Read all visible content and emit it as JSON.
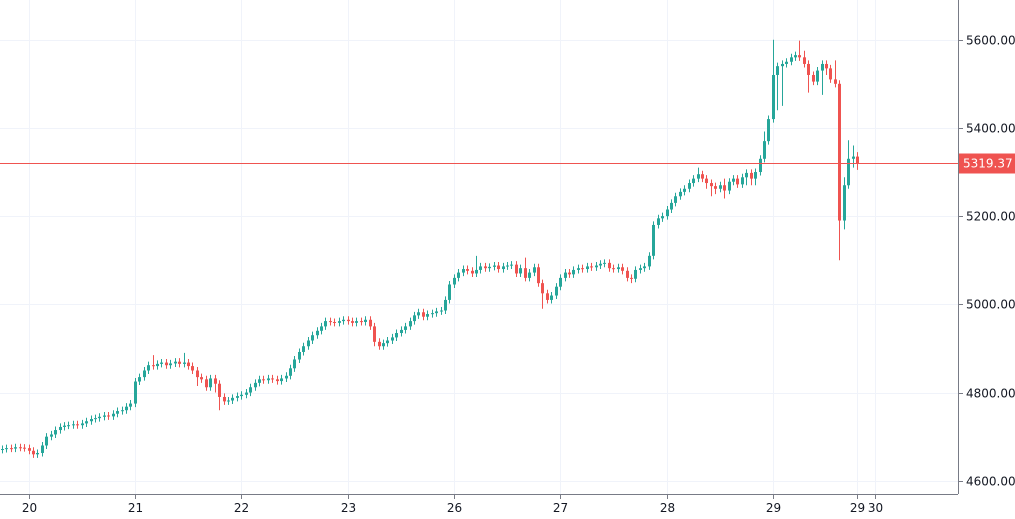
{
  "chart_data": {
    "type": "candlestick",
    "title": "",
    "interval": "1 hour",
    "x_tick_labels": [
      {
        "label": "20",
        "index": 6
      },
      {
        "label": "21",
        "index": 30
      },
      {
        "label": "22",
        "index": 54
      },
      {
        "label": "23",
        "index": 78
      },
      {
        "label": "26",
        "index": 102
      },
      {
        "label": "27",
        "index": 126
      },
      {
        "label": "28",
        "index": 150
      },
      {
        "label": "29",
        "index": 174
      },
      {
        "label": "29",
        "index": 193
      },
      {
        "label": "30",
        "index": 197
      }
    ],
    "y_tick_labels": [
      "4600.00",
      "4800.00",
      "5000.00",
      "5200.00",
      "5400.00",
      "5600.00"
    ],
    "y_ticks": [
      4600,
      4800,
      5000,
      5200,
      5400,
      5600
    ],
    "ylim": [
      4570,
      5690
    ],
    "x_count": 216,
    "grid": true,
    "last_price": 5319.37,
    "last_price_label": "5319.37",
    "colors": {
      "up": "#26a69a",
      "down": "#ef5350",
      "grid": "#f0f3fa",
      "axis": "#787b86",
      "price_line": "#ef5350"
    },
    "candles_format": [
      "open",
      "high",
      "low",
      "close"
    ],
    "candles": [
      [
        4670,
        4680,
        4662,
        4672
      ],
      [
        4672,
        4682,
        4664,
        4674
      ],
      [
        4674,
        4682,
        4665,
        4673
      ],
      [
        4673,
        4684,
        4665,
        4676
      ],
      [
        4676,
        4684,
        4667,
        4675
      ],
      [
        4675,
        4683,
        4666,
        4674
      ],
      [
        4674,
        4682,
        4660,
        4668
      ],
      [
        4668,
        4676,
        4652,
        4660
      ],
      [
        4660,
        4671,
        4652,
        4663
      ],
      [
        4663,
        4688,
        4655,
        4680
      ],
      [
        4680,
        4708,
        4672,
        4700
      ],
      [
        4700,
        4713,
        4692,
        4705
      ],
      [
        4705,
        4723,
        4697,
        4715
      ],
      [
        4715,
        4730,
        4707,
        4722
      ],
      [
        4722,
        4733,
        4714,
        4725
      ],
      [
        4725,
        4734,
        4717,
        4726
      ],
      [
        4726,
        4736,
        4718,
        4728
      ],
      [
        4728,
        4736,
        4718,
        4726
      ],
      [
        4726,
        4738,
        4718,
        4730
      ],
      [
        4730,
        4743,
        4722,
        4735
      ],
      [
        4735,
        4748,
        4727,
        4740
      ],
      [
        4740,
        4750,
        4732,
        4742
      ],
      [
        4742,
        4753,
        4734,
        4745
      ],
      [
        4745,
        4756,
        4737,
        4748
      ],
      [
        4748,
        4756,
        4738,
        4746
      ],
      [
        4746,
        4760,
        4738,
        4752
      ],
      [
        4752,
        4766,
        4744,
        4758
      ],
      [
        4758,
        4768,
        4750,
        4760
      ],
      [
        4760,
        4776,
        4752,
        4768
      ],
      [
        4768,
        4783,
        4760,
        4775
      ],
      [
        4775,
        4833,
        4767,
        4825
      ],
      [
        4825,
        4843,
        4817,
        4835
      ],
      [
        4835,
        4858,
        4827,
        4850
      ],
      [
        4850,
        4870,
        4842,
        4862
      ],
      [
        4862,
        4885,
        4852,
        4860
      ],
      [
        4860,
        4873,
        4852,
        4865
      ],
      [
        4865,
        4876,
        4857,
        4868
      ],
      [
        4868,
        4876,
        4854,
        4862
      ],
      [
        4862,
        4874,
        4854,
        4866
      ],
      [
        4866,
        4878,
        4858,
        4870
      ],
      [
        4870,
        4878,
        4857,
        4865
      ],
      [
        4865,
        4890,
        4857,
        4868
      ],
      [
        4868,
        4876,
        4852,
        4860
      ],
      [
        4860,
        4868,
        4842,
        4850
      ],
      [
        4850,
        4858,
        4815,
        4835
      ],
      [
        4835,
        4843,
        4822,
        4830
      ],
      [
        4830,
        4838,
        4804,
        4812
      ],
      [
        4812,
        4840,
        4804,
        4832
      ],
      [
        4832,
        4840,
        4800,
        4820
      ],
      [
        4820,
        4828,
        4760,
        4790
      ],
      [
        4790,
        4798,
        4772,
        4780
      ],
      [
        4780,
        4790,
        4772,
        4782
      ],
      [
        4782,
        4796,
        4774,
        4788
      ],
      [
        4788,
        4800,
        4780,
        4792
      ],
      [
        4792,
        4803,
        4784,
        4795
      ],
      [
        4795,
        4808,
        4787,
        4800
      ],
      [
        4800,
        4820,
        4792,
        4812
      ],
      [
        4812,
        4830,
        4804,
        4822
      ],
      [
        4822,
        4838,
        4814,
        4830
      ],
      [
        4830,
        4838,
        4820,
        4828
      ],
      [
        4828,
        4840,
        4820,
        4832
      ],
      [
        4832,
        4840,
        4822,
        4830
      ],
      [
        4830,
        4838,
        4818,
        4826
      ],
      [
        4826,
        4840,
        4818,
        4832
      ],
      [
        4832,
        4846,
        4824,
        4838
      ],
      [
        4838,
        4863,
        4830,
        4855
      ],
      [
        4855,
        4883,
        4847,
        4875
      ],
      [
        4875,
        4900,
        4867,
        4892
      ],
      [
        4892,
        4913,
        4884,
        4905
      ],
      [
        4905,
        4926,
        4897,
        4918
      ],
      [
        4918,
        4938,
        4910,
        4930
      ],
      [
        4930,
        4948,
        4922,
        4940
      ],
      [
        4940,
        4958,
        4932,
        4950
      ],
      [
        4950,
        4970,
        4942,
        4962
      ],
      [
        4962,
        4970,
        4952,
        4960
      ],
      [
        4960,
        4968,
        4950,
        4958
      ],
      [
        4958,
        4970,
        4950,
        4962
      ],
      [
        4962,
        4973,
        4954,
        4965
      ],
      [
        4965,
        4973,
        4954,
        4962
      ],
      [
        4962,
        4970,
        4950,
        4958
      ],
      [
        4958,
        4970,
        4950,
        4962
      ],
      [
        4962,
        4970,
        4952,
        4960
      ],
      [
        4960,
        4973,
        4952,
        4965
      ],
      [
        4965,
        4973,
        4942,
        4950
      ],
      [
        4950,
        4958,
        4905,
        4915
      ],
      [
        4915,
        4923,
        4897,
        4905
      ],
      [
        4905,
        4920,
        4897,
        4912
      ],
      [
        4912,
        4926,
        4904,
        4918
      ],
      [
        4918,
        4933,
        4910,
        4925
      ],
      [
        4925,
        4943,
        4917,
        4935
      ],
      [
        4935,
        4950,
        4927,
        4942
      ],
      [
        4942,
        4958,
        4934,
        4950
      ],
      [
        4950,
        4970,
        4942,
        4962
      ],
      [
        4962,
        4983,
        4954,
        4975
      ],
      [
        4975,
        4990,
        4967,
        4982
      ],
      [
        4982,
        4990,
        4964,
        4972
      ],
      [
        4972,
        4986,
        4964,
        4978
      ],
      [
        4978,
        4988,
        4970,
        4980
      ],
      [
        4980,
        4992,
        4972,
        4984
      ],
      [
        4984,
        4994,
        4976,
        4986
      ],
      [
        4986,
        5018,
        4978,
        5010
      ],
      [
        5010,
        5053,
        5002,
        5045
      ],
      [
        5045,
        5068,
        5037,
        5060
      ],
      [
        5060,
        5080,
        5052,
        5072
      ],
      [
        5072,
        5088,
        5064,
        5080
      ],
      [
        5080,
        5088,
        5068,
        5076
      ],
      [
        5076,
        5084,
        5062,
        5070
      ],
      [
        5070,
        5110,
        5062,
        5078
      ],
      [
        5078,
        5094,
        5070,
        5086
      ],
      [
        5086,
        5094,
        5074,
        5082
      ],
      [
        5082,
        5093,
        5074,
        5085
      ],
      [
        5085,
        5096,
        5077,
        5088
      ],
      [
        5088,
        5096,
        5072,
        5080
      ],
      [
        5080,
        5094,
        5072,
        5086
      ],
      [
        5086,
        5096,
        5078,
        5088
      ],
      [
        5088,
        5098,
        5080,
        5090
      ],
      [
        5090,
        5098,
        5062,
        5070
      ],
      [
        5070,
        5090,
        5062,
        5082
      ],
      [
        5082,
        5106,
        5052,
        5060
      ],
      [
        5060,
        5080,
        5052,
        5072
      ],
      [
        5072,
        5092,
        5064,
        5084
      ],
      [
        5084,
        5092,
        5040,
        5048
      ],
      [
        5048,
        5056,
        4990,
        5025
      ],
      [
        5025,
        5033,
        5002,
        5010
      ],
      [
        5010,
        5028,
        5002,
        5020
      ],
      [
        5020,
        5048,
        5012,
        5040
      ],
      [
        5040,
        5068,
        5032,
        5060
      ],
      [
        5060,
        5080,
        5052,
        5072
      ],
      [
        5072,
        5080,
        5060,
        5068
      ],
      [
        5068,
        5086,
        5060,
        5078
      ],
      [
        5078,
        5090,
        5070,
        5082
      ],
      [
        5082,
        5090,
        5072,
        5080
      ],
      [
        5080,
        5094,
        5072,
        5086
      ],
      [
        5086,
        5094,
        5076,
        5084
      ],
      [
        5084,
        5096,
        5076,
        5088
      ],
      [
        5088,
        5100,
        5080,
        5092
      ],
      [
        5092,
        5102,
        5084,
        5094
      ],
      [
        5094,
        5102,
        5074,
        5082
      ],
      [
        5082,
        5090,
        5072,
        5080
      ],
      [
        5080,
        5092,
        5072,
        5084
      ],
      [
        5084,
        5092,
        5068,
        5076
      ],
      [
        5076,
        5084,
        5052,
        5060
      ],
      [
        5060,
        5068,
        5048,
        5058
      ],
      [
        5058,
        5086,
        5050,
        5078
      ],
      [
        5078,
        5090,
        5070,
        5082
      ],
      [
        5082,
        5094,
        5074,
        5086
      ],
      [
        5086,
        5118,
        5078,
        5110
      ],
      [
        5110,
        5188,
        5102,
        5180
      ],
      [
        5180,
        5203,
        5172,
        5195
      ],
      [
        5195,
        5208,
        5187,
        5200
      ],
      [
        5200,
        5223,
        5192,
        5215
      ],
      [
        5215,
        5238,
        5207,
        5230
      ],
      [
        5230,
        5253,
        5222,
        5245
      ],
      [
        5245,
        5263,
        5237,
        5255
      ],
      [
        5255,
        5270,
        5247,
        5262
      ],
      [
        5262,
        5283,
        5254,
        5275
      ],
      [
        5275,
        5293,
        5267,
        5285
      ],
      [
        5285,
        5310,
        5277,
        5295
      ],
      [
        5295,
        5303,
        5277,
        5285
      ],
      [
        5285,
        5293,
        5262,
        5275
      ],
      [
        5275,
        5283,
        5245,
        5268
      ],
      [
        5268,
        5276,
        5250,
        5262
      ],
      [
        5262,
        5278,
        5254,
        5270
      ],
      [
        5270,
        5285,
        5240,
        5258
      ],
      [
        5258,
        5286,
        5250,
        5278
      ],
      [
        5278,
        5293,
        5270,
        5285
      ],
      [
        5285,
        5293,
        5264,
        5272
      ],
      [
        5272,
        5296,
        5264,
        5288
      ],
      [
        5288,
        5306,
        5270,
        5298
      ],
      [
        5298,
        5306,
        5270,
        5285
      ],
      [
        5285,
        5308,
        5270,
        5300
      ],
      [
        5300,
        5338,
        5292,
        5330
      ],
      [
        5330,
        5392,
        5322,
        5370
      ],
      [
        5370,
        5428,
        5362,
        5420
      ],
      [
        5420,
        5600,
        5412,
        5520
      ],
      [
        5520,
        5548,
        5440,
        5540
      ],
      [
        5540,
        5553,
        5450,
        5545
      ],
      [
        5545,
        5558,
        5537,
        5550
      ],
      [
        5550,
        5568,
        5542,
        5560
      ],
      [
        5560,
        5573,
        5552,
        5565
      ],
      [
        5565,
        5598,
        5552,
        5560
      ],
      [
        5560,
        5575,
        5537,
        5545
      ],
      [
        5545,
        5553,
        5480,
        5520
      ],
      [
        5520,
        5528,
        5497,
        5505
      ],
      [
        5505,
        5538,
        5497,
        5530
      ],
      [
        5530,
        5553,
        5475,
        5545
      ],
      [
        5545,
        5553,
        5520,
        5535
      ],
      [
        5535,
        5543,
        5502,
        5510
      ],
      [
        5510,
        5553,
        5492,
        5500
      ],
      [
        5500,
        5508,
        5100,
        5190
      ],
      [
        5190,
        5288,
        5170,
        5270
      ],
      [
        5270,
        5372,
        5262,
        5330
      ],
      [
        5330,
        5360,
        5310,
        5335
      ],
      [
        5335,
        5345,
        5305,
        5319.37
      ]
    ]
  }
}
